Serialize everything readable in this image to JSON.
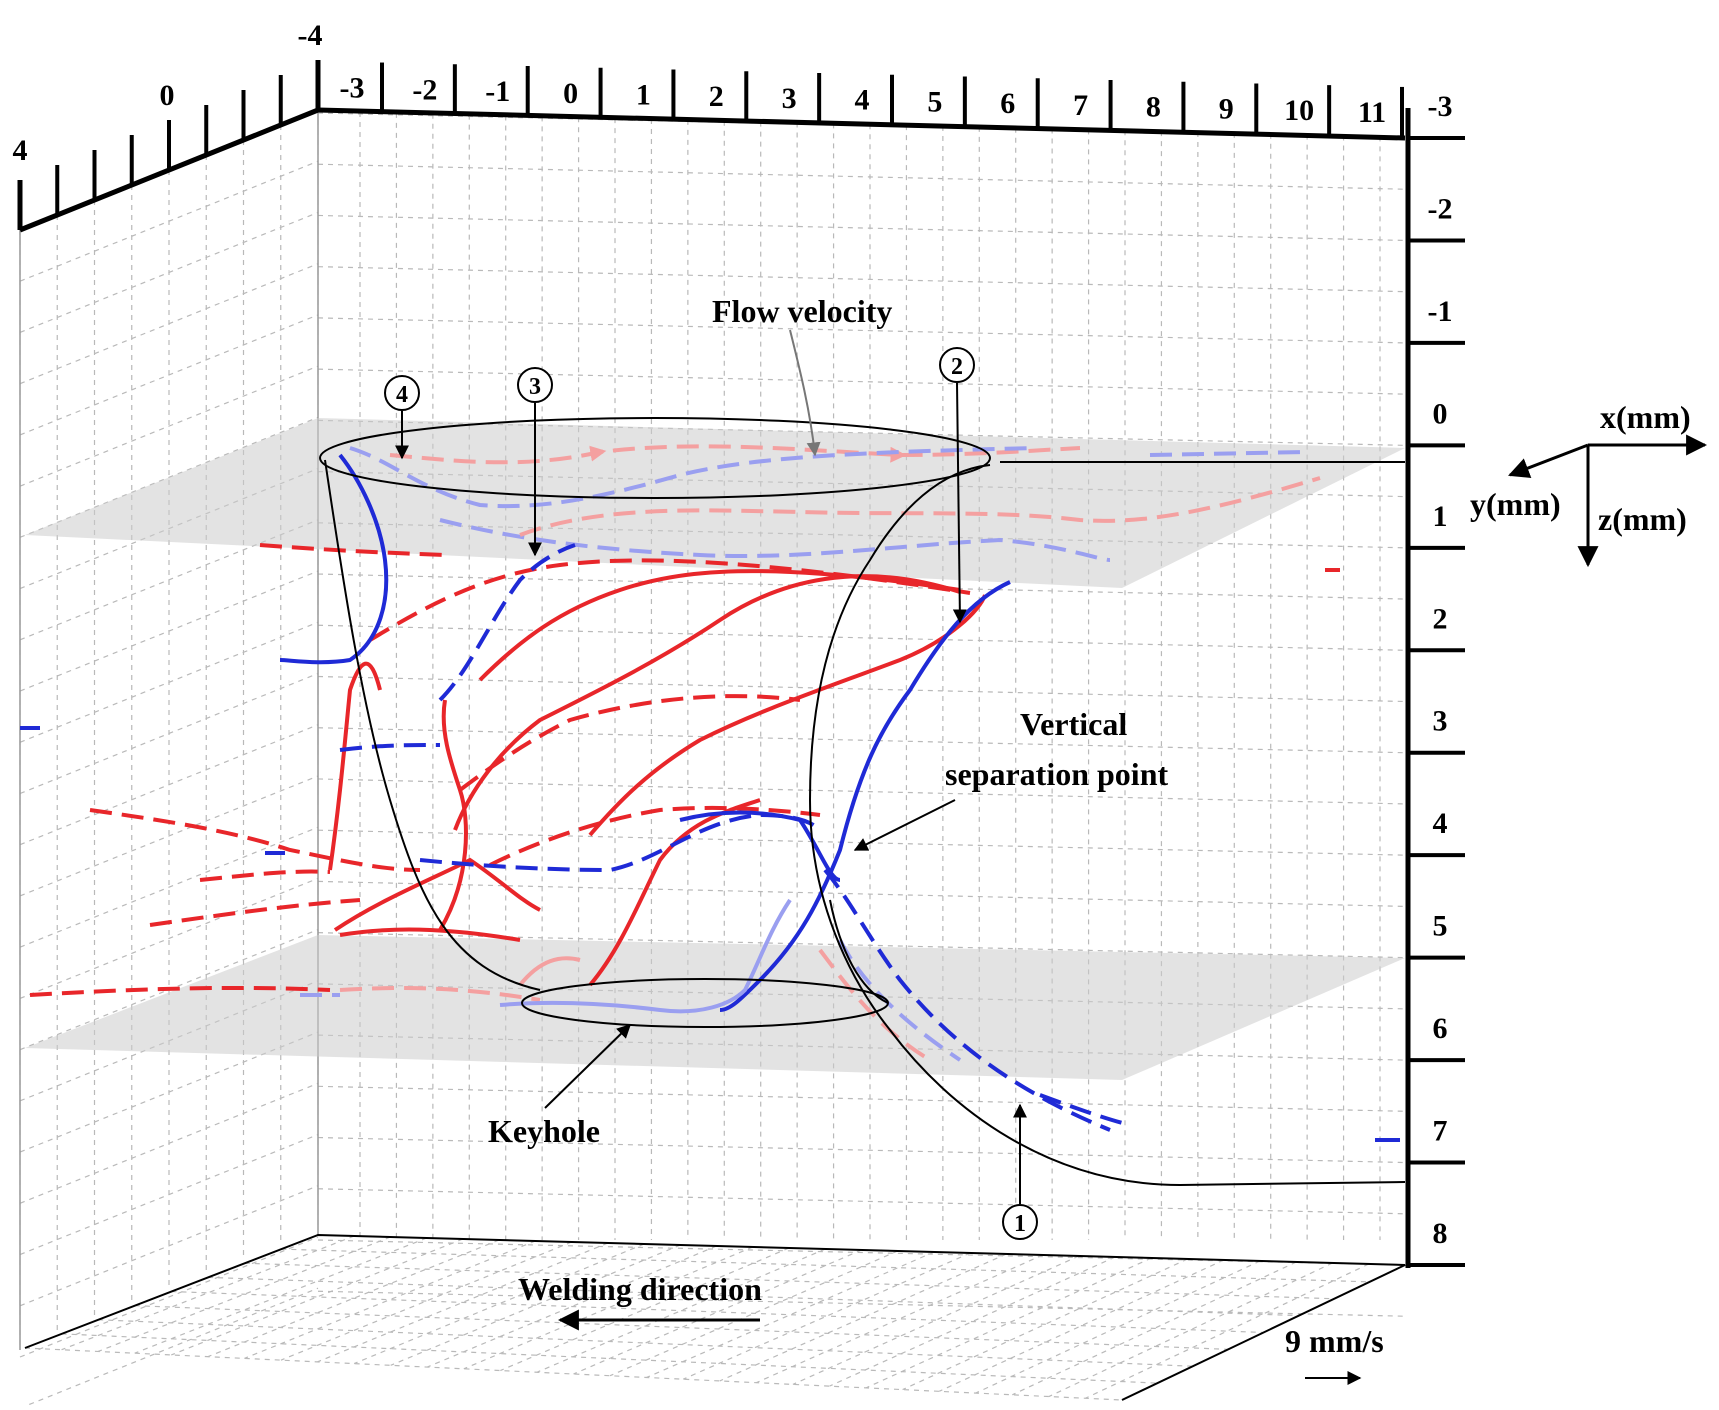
{
  "axes": {
    "x_ticks": [
      "-3",
      "-2",
      "-1",
      "0",
      "1",
      "2",
      "3",
      "4",
      "5",
      "6",
      "7",
      "8",
      "9",
      "10",
      "11"
    ],
    "z_ticks": [
      "-3",
      "-2",
      "-1",
      "0",
      "1",
      "2",
      "3",
      "4",
      "5",
      "6",
      "7",
      "8"
    ],
    "y_ticks": [
      "4",
      "0",
      "-4"
    ],
    "legend_x": "x(mm)",
    "legend_y": "y(mm)",
    "legend_z": "z(mm)"
  },
  "annotations": {
    "flow_velocity": "Flow velocity",
    "vertical_separation_line1": "Vertical",
    "vertical_separation_line2": "separation point",
    "keyhole": "Keyhole",
    "welding_direction": "Welding direction",
    "scale": "9 mm/s"
  },
  "markers": [
    "1",
    "2",
    "3",
    "4"
  ],
  "colors": {
    "red": "#e8262a",
    "blue": "#1f2ad6",
    "pink": "#f4a0a0",
    "light_blue": "#9a9ff0",
    "plane": "#cccccc"
  }
}
